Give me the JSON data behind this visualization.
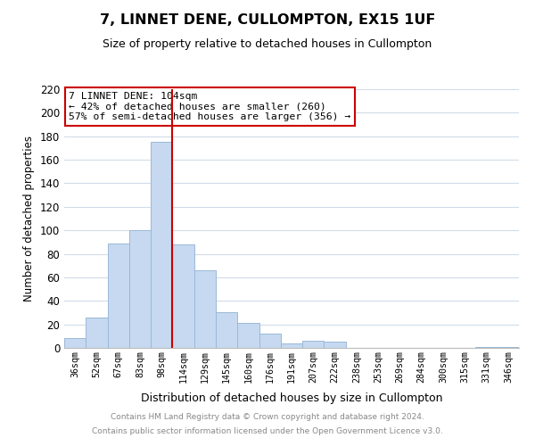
{
  "title": "7, LINNET DENE, CULLOMPTON, EX15 1UF",
  "subtitle": "Size of property relative to detached houses in Cullompton",
  "xlabel": "Distribution of detached houses by size in Cullompton",
  "ylabel": "Number of detached properties",
  "bar_color": "#c6d9f0",
  "bar_edge_color": "#9ab9d8",
  "categories": [
    "36sqm",
    "52sqm",
    "67sqm",
    "83sqm",
    "98sqm",
    "114sqm",
    "129sqm",
    "145sqm",
    "160sqm",
    "176sqm",
    "191sqm",
    "207sqm",
    "222sqm",
    "238sqm",
    "253sqm",
    "269sqm",
    "284sqm",
    "300sqm",
    "315sqm",
    "331sqm",
    "346sqm"
  ],
  "values": [
    8,
    26,
    89,
    100,
    175,
    88,
    66,
    30,
    21,
    12,
    4,
    6,
    5,
    0,
    0,
    0,
    0,
    0,
    0,
    1,
    1
  ],
  "vline_x_index": 4,
  "vline_color": "#cc0000",
  "ylim": [
    0,
    220
  ],
  "yticks": [
    0,
    20,
    40,
    60,
    80,
    100,
    120,
    140,
    160,
    180,
    200,
    220
  ],
  "annotation_title": "7 LINNET DENE: 104sqm",
  "annotation_line1": "← 42% of detached houses are smaller (260)",
  "annotation_line2": "57% of semi-detached houses are larger (356) →",
  "annotation_box_color": "#ffffff",
  "annotation_box_edge_color": "#cc0000",
  "footer1": "Contains HM Land Registry data © Crown copyright and database right 2024.",
  "footer2": "Contains public sector information licensed under the Open Government Licence v3.0.",
  "background_color": "#ffffff",
  "grid_color": "#d0dce8"
}
